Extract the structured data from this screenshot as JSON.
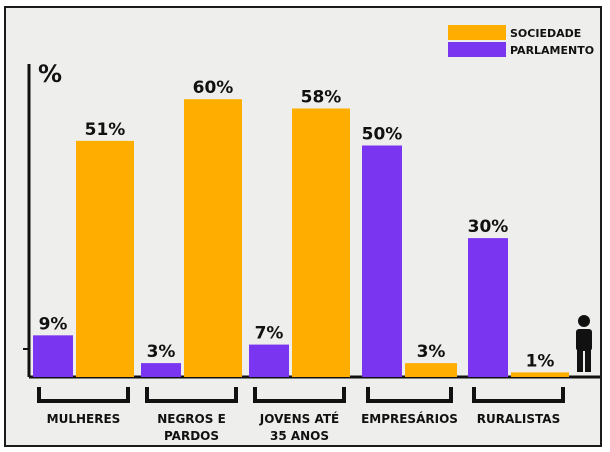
{
  "chart_data": {
    "type": "bar",
    "ylabel": "%",
    "ylim": [
      0,
      70
    ],
    "grid": false,
    "legend_position": "top-right",
    "categories": [
      [
        "MULHERES"
      ],
      [
        "NEGROS E",
        "PARDOS"
      ],
      [
        "JOVENS ATÉ",
        "35 ANOS"
      ],
      [
        "EMPRESÁRIOS"
      ],
      [
        "RURALISTAS"
      ]
    ],
    "series": [
      {
        "name": "PARLAMENTO",
        "values": [
          9,
          3,
          7,
          50,
          30
        ],
        "color": "#7a35f0"
      },
      {
        "name": "SOCIEDADE",
        "values": [
          51,
          60,
          58,
          3,
          1
        ],
        "color": "#ffae00"
      }
    ],
    "value_suffix": "%",
    "end_icon": "person-icon"
  }
}
